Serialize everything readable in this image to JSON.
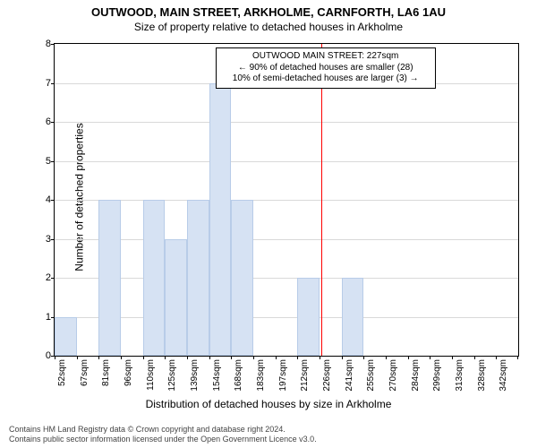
{
  "title": "OUTWOOD, MAIN STREET, ARKHOLME, CARNFORTH, LA6 1AU",
  "subtitle": "Size of property relative to detached houses in Arkholme",
  "chart": {
    "type": "histogram",
    "ylabel": "Number of detached properties",
    "xlabel": "Distribution of detached houses by size in Arkholme",
    "ylim": [
      0,
      8
    ],
    "ytick_step": 1,
    "xticks": [
      "52sqm",
      "67sqm",
      "81sqm",
      "96sqm",
      "110sqm",
      "125sqm",
      "139sqm",
      "154sqm",
      "168sqm",
      "183sqm",
      "197sqm",
      "212sqm",
      "226sqm",
      "241sqm",
      "255sqm",
      "270sqm",
      "284sqm",
      "299sqm",
      "313sqm",
      "328sqm",
      "342sqm"
    ],
    "values": [
      1,
      0,
      4,
      0,
      4,
      3,
      4,
      7,
      4,
      0,
      0,
      2,
      0,
      2,
      0,
      0,
      0,
      0,
      0,
      0,
      0
    ],
    "bar_color": "#d6e2f3",
    "bar_border_color": "#b8cce8",
    "grid_color": "#d9d9d9",
    "background_color": "#ffffff",
    "marker_value_index": 12,
    "marker_color": "#ff0000",
    "annotation": {
      "line1": "OUTWOOD MAIN STREET: 227sqm",
      "line2": "← 90% of detached houses are smaller (28)",
      "line3": "10% of semi-detached houses are larger (3) →",
      "fontsize": 10
    },
    "title_fontsize": 13,
    "label_fontsize": 12,
    "tick_fontsize": 10
  },
  "footer": {
    "line1": "Contains HM Land Registry data © Crown copyright and database right 2024.",
    "line2": "Contains public sector information licensed under the Open Government Licence v3.0."
  }
}
